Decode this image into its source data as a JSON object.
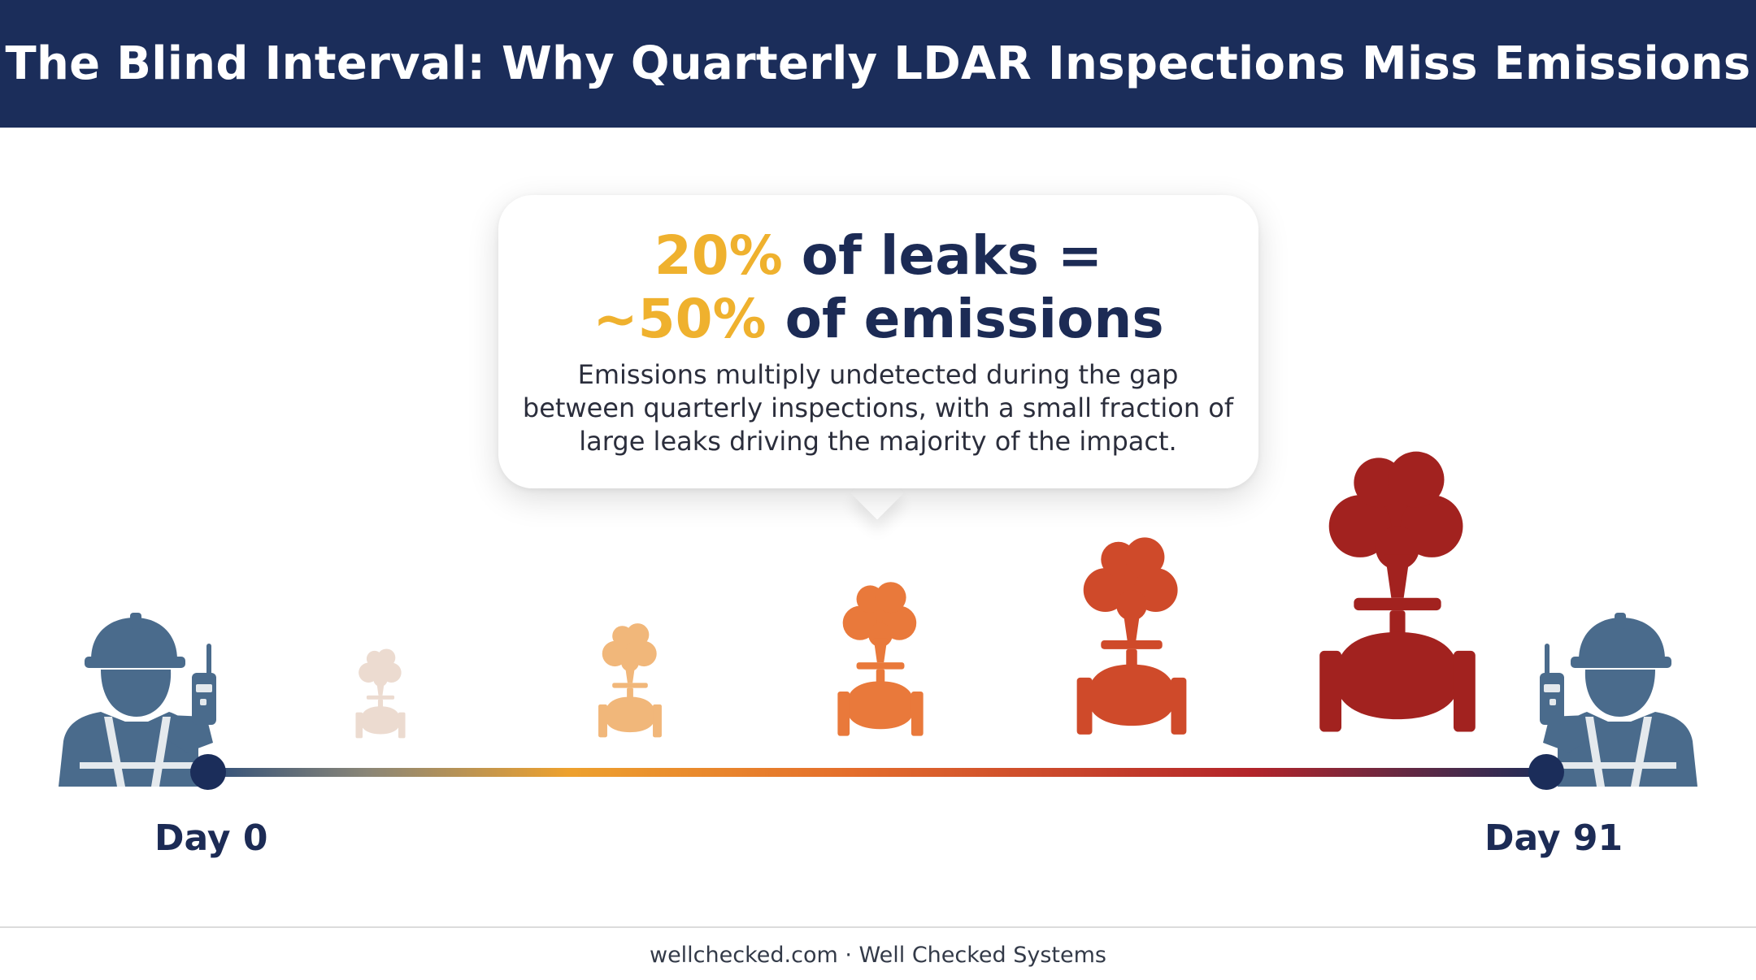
{
  "header": {
    "title": "The Blind Interval: Why Quarterly LDAR Inspections Miss Emissions"
  },
  "callout": {
    "line1_accent": "20%",
    "line1_rest": " of leaks =",
    "line2_accent": "~50%",
    "line2_rest": " of emissions",
    "description": "Emissions multiply undetected during the gap between quarterly inspections, with a small fraction of large leaks driving the majority of the impact."
  },
  "timeline": {
    "start_label": "Day 0",
    "end_label": "Day 91",
    "leak_stages": [
      {
        "name": "leak-stage-1",
        "color": "#ecdbd0",
        "level": 1
      },
      {
        "name": "leak-stage-2",
        "color": "#f1b77a",
        "level": 2
      },
      {
        "name": "leak-stage-3",
        "color": "#e9793b",
        "level": 3
      },
      {
        "name": "leak-stage-4",
        "color": "#cf4a2a",
        "level": 4
      },
      {
        "name": "leak-stage-5",
        "color": "#a2221f",
        "level": 5
      }
    ]
  },
  "colors": {
    "navy": "#1b2d5a",
    "accent_yellow": "#efb12e",
    "worker_blue": "#4a6b8c"
  },
  "icons": {
    "worker_left": "inspector-with-radio-icon",
    "worker_right": "inspector-with-radio-icon",
    "leak": "leaking-valve-with-plume-icon"
  },
  "footer": {
    "text": "wellchecked.com · Well Checked Systems"
  }
}
